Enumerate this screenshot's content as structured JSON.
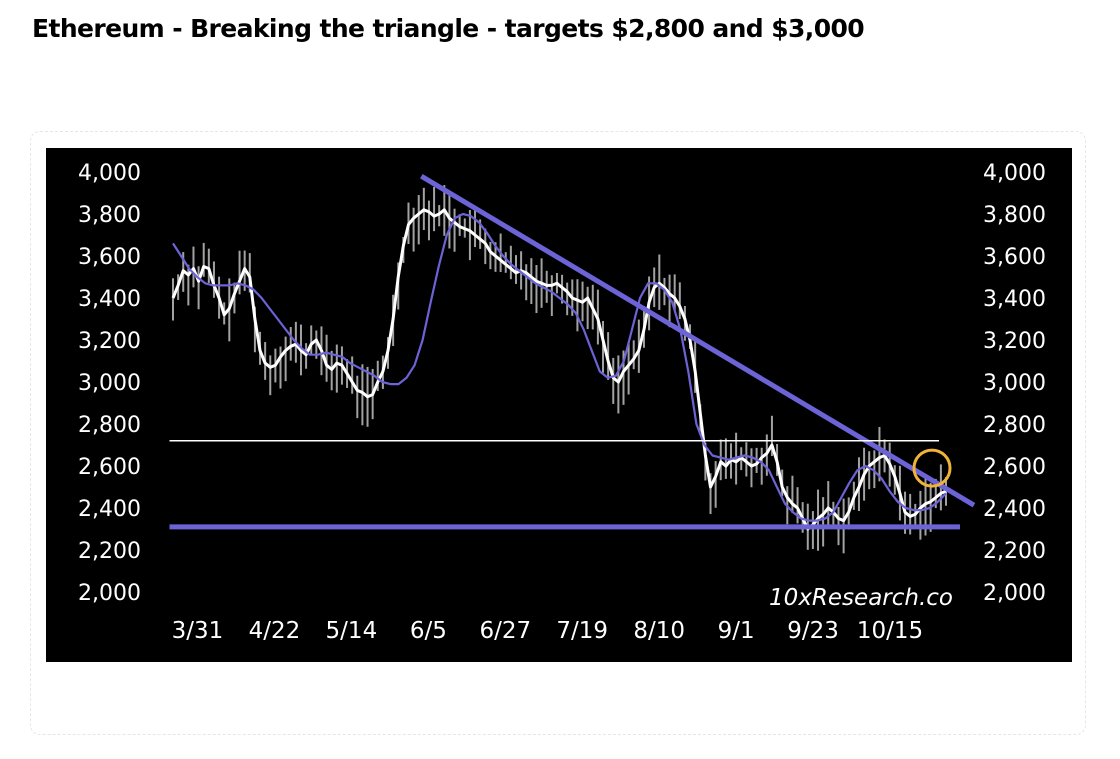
{
  "headline": "Ethereum - Breaking the triangle - targets $2,800 and $3,000",
  "chart_data": {
    "type": "line",
    "title": "",
    "watermark": "10xResearch.co",
    "ylim": [
      2000,
      4000
    ],
    "y_ticks": [
      "4,000",
      "3,800",
      "3,600",
      "3,400",
      "3,200",
      "3,000",
      "2,800",
      "2,600",
      "2,400",
      "2,200",
      "2,000"
    ],
    "y_tick_values": [
      4000,
      3800,
      3600,
      3400,
      3200,
      3000,
      2800,
      2600,
      2400,
      2200,
      2000
    ],
    "x_labels": [
      "3/31",
      "4/22",
      "5/14",
      "6/5",
      "6/27",
      "7/19",
      "8/10",
      "9/1",
      "9/23",
      "10/15"
    ],
    "x_label_index": [
      7,
      29,
      51,
      73,
      95,
      117,
      139,
      161,
      183,
      205
    ],
    "colors": {
      "background": "#000000",
      "price": "#ffffff",
      "ma": "#6c63d6",
      "trend": "#6c63d6",
      "support": "#6c63d6",
      "target": "#ffffff",
      "circle": "#f0b33a",
      "wick": "#bfbfbf"
    },
    "series": [
      {
        "name": "",
        "kind": "price",
        "color": "#ffffff",
        "values": [
          3400,
          3460,
          3530,
          3510,
          3540,
          3480,
          3550,
          3540,
          3460,
          3400,
          3320,
          3350,
          3420,
          3480,
          3540,
          3500,
          3300,
          3150,
          3090,
          3070,
          3080,
          3120,
          3150,
          3170,
          3180,
          3150,
          3130,
          3180,
          3200,
          3150,
          3080,
          3060,
          3090,
          3080,
          3040,
          3000,
          2960,
          2950,
          2930,
          2940,
          3000,
          3050,
          3150,
          3300,
          3500,
          3650,
          3750,
          3780,
          3800,
          3820,
          3810,
          3790,
          3800,
          3820,
          3780,
          3760,
          3740,
          3730,
          3720,
          3700,
          3680,
          3660,
          3620,
          3600,
          3580,
          3560,
          3540,
          3520,
          3530,
          3520,
          3500,
          3480,
          3470,
          3460,
          3460,
          3470,
          3450,
          3430,
          3400,
          3390,
          3380,
          3400,
          3350,
          3300,
          3200,
          3100,
          3020,
          3000,
          3050,
          3080,
          3110,
          3150,
          3250,
          3380,
          3450,
          3470,
          3450,
          3420,
          3400,
          3360,
          3300,
          3200,
          3050,
          2850,
          2650,
          2500,
          2550,
          2620,
          2600,
          2630,
          2620,
          2640,
          2620,
          2600,
          2610,
          2640,
          2660,
          2700,
          2620,
          2500,
          2450,
          2420,
          2400,
          2350,
          2300,
          2320,
          2350,
          2370,
          2400,
          2380,
          2350,
          2340,
          2380,
          2450,
          2500,
          2560,
          2600,
          2620,
          2640,
          2650,
          2610,
          2550,
          2470,
          2380,
          2360,
          2370,
          2400,
          2420,
          2430,
          2450,
          2470,
          2480
        ],
        "x_start": 0
      },
      {
        "name": "",
        "kind": "moving-average",
        "color": "#6c63d6",
        "values": [
          3660,
          3600,
          3540,
          3500,
          3470,
          3460,
          3460,
          3460,
          3470,
          3460,
          3440,
          3400,
          3350,
          3300,
          3250,
          3200,
          3160,
          3130,
          3130,
          3140,
          3130,
          3120,
          3090,
          3070,
          3050,
          3030,
          3000,
          2990,
          2990,
          3020,
          3080,
          3200,
          3380,
          3550,
          3700,
          3780,
          3800,
          3790,
          3760,
          3710,
          3650,
          3600,
          3560,
          3530,
          3500,
          3470,
          3450,
          3430,
          3400,
          3370,
          3330,
          3250,
          3150,
          3050,
          3020,
          3030,
          3100,
          3250,
          3400,
          3470,
          3470,
          3440,
          3380,
          3250,
          3050,
          2800,
          2700,
          2650,
          2640,
          2630,
          2640,
          2650,
          2640,
          2620,
          2580,
          2500,
          2420,
          2380,
          2350,
          2340,
          2340,
          2350,
          2380,
          2450,
          2520,
          2580,
          2600,
          2580,
          2540,
          2480,
          2430,
          2400,
          2390,
          2390,
          2400,
          2430,
          2470
        ],
        "x_start": 0,
        "x_end": 221
      }
    ],
    "annotations": [
      {
        "type": "trendline",
        "from": [
          71,
          3980
        ],
        "to": [
          221,
          2480
        ]
      },
      {
        "type": "hline",
        "y": 2310,
        "from_x": -1,
        "to_x": 225
      },
      {
        "type": "hline",
        "y": 2720,
        "from_x": -1,
        "to_x": 219
      },
      {
        "type": "circle",
        "x": 217,
        "y": 2590
      }
    ],
    "x_count": 222
  }
}
